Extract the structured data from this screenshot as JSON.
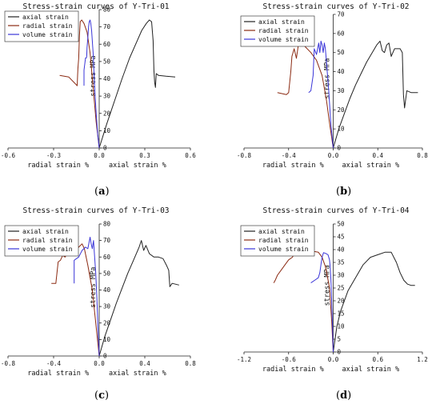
{
  "chart_data": [
    {
      "id": "a",
      "type": "line",
      "title": "Stress-strain curves of Y-Tri-01",
      "caption": "a",
      "xlabel_left": "radial strain %",
      "xlabel_right": "axial strain %",
      "ylabel": "stress MPa",
      "xlim": [
        -0.6,
        0.6
      ],
      "xticks": [
        -0.6,
        -0.3,
        0.0,
        0.3,
        0.6
      ],
      "xtick_labels": [
        "-0.6",
        "-0.3",
        "0.0",
        "0.3",
        "0.6"
      ],
      "ylim": [
        0,
        80
      ],
      "yticks": [
        0,
        10,
        20,
        30,
        40,
        50,
        60,
        70,
        80
      ],
      "legend": [
        "axial strain",
        "radial strain",
        "volume strain"
      ],
      "legend_position": "top-left",
      "series": [
        {
          "name": "axial strain",
          "color": "#222222",
          "x": [
            0,
            0.05,
            0.1,
            0.15,
            0.2,
            0.25,
            0.28,
            0.31,
            0.33,
            0.345,
            0.355,
            0.36,
            0.365,
            0.37,
            0.375,
            0.39,
            0.44,
            0.5
          ],
          "y": [
            0,
            14,
            27,
            40,
            52,
            62,
            68,
            72,
            74,
            73,
            62,
            45,
            38,
            35,
            43,
            42,
            41.5,
            41
          ]
        },
        {
          "name": "radial strain",
          "color": "#8b2a12",
          "x": [
            0,
            -0.02,
            -0.04,
            -0.06,
            -0.08,
            -0.1,
            -0.115,
            -0.125,
            -0.13,
            -0.135,
            -0.14,
            -0.142,
            -0.145,
            -0.2,
            -0.26
          ],
          "y": [
            0,
            15,
            35,
            55,
            67,
            72,
            74,
            73,
            65,
            52,
            46,
            42,
            36,
            41,
            42
          ]
        },
        {
          "name": "volume strain",
          "color": "#3a35d8",
          "x": [
            0,
            -0.01,
            -0.02,
            -0.03,
            -0.04,
            -0.05,
            -0.055,
            -0.06,
            -0.065,
            -0.07,
            -0.075,
            -0.08,
            -0.082,
            -0.085,
            -0.09,
            -0.1,
            -0.1
          ],
          "y": [
            0,
            8,
            20,
            35,
            55,
            68,
            72,
            74,
            73,
            70,
            64,
            58,
            53,
            52,
            52,
            45,
            36
          ]
        }
      ]
    },
    {
      "id": "b",
      "type": "line",
      "title": "Stress-strain curves of Y-Tri-02",
      "caption": "b",
      "xlabel_left": "radial strain %",
      "xlabel_right": "axial strain %",
      "ylabel": "stress MPa",
      "xlim": [
        -0.8,
        0.8
      ],
      "xticks": [
        -0.8,
        -0.4,
        0.0,
        0.4,
        0.8
      ],
      "xtick_labels": [
        "-0.8",
        "-0.4",
        "0.0",
        "0.4",
        "0.8"
      ],
      "ylim": [
        0,
        70
      ],
      "yticks": [
        0,
        10,
        20,
        30,
        40,
        50,
        60,
        70
      ],
      "legend": [
        "axial strain",
        "radial strain",
        "volume strain"
      ],
      "legend_position": "top-left",
      "series": [
        {
          "name": "axial strain",
          "color": "#222222",
          "x": [
            0,
            0.05,
            0.1,
            0.15,
            0.2,
            0.25,
            0.3,
            0.35,
            0.39,
            0.42,
            0.44,
            0.46,
            0.48,
            0.5,
            0.52,
            0.55,
            0.6,
            0.62,
            0.63,
            0.64,
            0.66,
            0.7,
            0.76
          ],
          "y": [
            0,
            10,
            18,
            26,
            33,
            39,
            45,
            50,
            54,
            56,
            51,
            50,
            54,
            55,
            48,
            52,
            52,
            50,
            28,
            21,
            30,
            29,
            29
          ]
        },
        {
          "name": "radial strain",
          "color": "#8b2a12",
          "x": [
            0,
            -0.03,
            -0.06,
            -0.1,
            -0.15,
            -0.2,
            -0.25,
            -0.28,
            -0.31,
            -0.33,
            -0.35,
            -0.37,
            -0.38,
            -0.4,
            -0.42,
            -0.5
          ],
          "y": [
            0,
            12,
            25,
            38,
            46,
            50,
            53,
            55,
            55,
            47,
            52,
            48,
            40,
            29,
            28,
            29
          ]
        },
        {
          "name": "volume strain",
          "color": "#3a35d8",
          "x": [
            0,
            -0.02,
            -0.04,
            -0.06,
            -0.07,
            -0.08,
            -0.09,
            -0.1,
            -0.11,
            -0.12,
            -0.13,
            -0.15,
            -0.17,
            -0.18,
            -0.2,
            -0.22
          ],
          "y": [
            0,
            12,
            30,
            45,
            52,
            55,
            50,
            54,
            56,
            50,
            55,
            49,
            52,
            38,
            30,
            29
          ]
        }
      ]
    },
    {
      "id": "c",
      "type": "line",
      "title": "Stress-strain curves of Y-Tri-03",
      "caption": "c",
      "xlabel_left": "radial strain %",
      "xlabel_right": "axial strain %",
      "ylabel": "stress MPa",
      "xlim": [
        -0.8,
        0.8
      ],
      "xticks": [
        -0.8,
        -0.4,
        0.0,
        0.4,
        0.8
      ],
      "xtick_labels": [
        "-0.8",
        "-0.4",
        "0.0",
        "0.4",
        "0.8"
      ],
      "ylim": [
        0,
        80
      ],
      "yticks": [
        0,
        10,
        20,
        30,
        40,
        50,
        60,
        70,
        80
      ],
      "legend": [
        "axial strain",
        "radial strain",
        "volume strain"
      ],
      "legend_position": "top-left",
      "series": [
        {
          "name": "axial strain",
          "color": "#222222",
          "x": [
            0,
            0.05,
            0.1,
            0.15,
            0.2,
            0.25,
            0.3,
            0.35,
            0.37,
            0.39,
            0.41,
            0.44,
            0.48,
            0.52,
            0.56,
            0.59,
            0.61,
            0.62,
            0.64,
            0.7
          ],
          "y": [
            0,
            12,
            22,
            32,
            41,
            50,
            58,
            66,
            70,
            64,
            67,
            62,
            60,
            60,
            59,
            55,
            52,
            42,
            44,
            43
          ]
        },
        {
          "name": "radial strain",
          "color": "#8b2a12",
          "x": [
            0,
            -0.03,
            -0.06,
            -0.1,
            -0.13,
            -0.15,
            -0.18,
            -0.22,
            -0.25,
            -0.28,
            -0.3,
            -0.32,
            -0.34,
            -0.36,
            -0.38,
            -0.42
          ],
          "y": [
            0,
            20,
            40,
            55,
            65,
            68,
            66,
            62,
            63,
            62,
            60,
            61,
            58,
            57,
            44,
            44
          ]
        },
        {
          "name": "volume strain",
          "color": "#3a35d8",
          "x": [
            0,
            -0.01,
            -0.02,
            -0.03,
            -0.04,
            -0.05,
            -0.06,
            -0.07,
            -0.08,
            -0.1,
            -0.12,
            -0.15,
            -0.18,
            -0.2,
            -0.22,
            -0.22
          ],
          "y": [
            0,
            15,
            35,
            50,
            60,
            70,
            65,
            68,
            72,
            65,
            66,
            64,
            60,
            59,
            58,
            44
          ]
        }
      ]
    },
    {
      "id": "d",
      "type": "line",
      "title": "Stress-strain curves of Y-Tri-04",
      "caption": "d",
      "xlabel_left": "radial strain %",
      "xlabel_right": "axial strain %",
      "ylabel": "stress MPa",
      "xlim": [
        -1.2,
        1.2
      ],
      "xticks": [
        -1.2,
        -0.6,
        0.0,
        0.6,
        1.2
      ],
      "xtick_labels": [
        "-1.2",
        "-0.6",
        "0.0",
        "0.6",
        "1.2"
      ],
      "ylim": [
        0,
        50
      ],
      "yticks": [
        0,
        5,
        10,
        15,
        20,
        25,
        30,
        35,
        40,
        45,
        50
      ],
      "legend": [
        "axial strain",
        "radial strain",
        "volume strain"
      ],
      "legend_position": "top-left",
      "series": [
        {
          "name": "axial strain",
          "color": "#222222",
          "x": [
            0,
            0.05,
            0.1,
            0.2,
            0.3,
            0.4,
            0.5,
            0.6,
            0.7,
            0.78,
            0.85,
            0.9,
            0.95,
            1.0,
            1.05,
            1.1
          ],
          "y": [
            0,
            10,
            16,
            24,
            29,
            34,
            37,
            38,
            39,
            39,
            35,
            31,
            28,
            26.5,
            26,
            26
          ]
        },
        {
          "name": "radial strain",
          "color": "#8b2a12",
          "x": [
            0,
            -0.02,
            -0.05,
            -0.1,
            -0.15,
            -0.2,
            -0.3,
            -0.4,
            -0.5,
            -0.55,
            -0.6,
            -0.65,
            -0.7,
            -0.75,
            -0.78,
            -0.8
          ],
          "y": [
            0,
            12,
            25,
            33,
            37,
            39,
            39.5,
            38,
            39.5,
            37,
            36,
            34,
            32,
            30,
            28,
            27
          ]
        },
        {
          "name": "volume strain",
          "color": "#3a35d8",
          "x": [
            0,
            -0.01,
            -0.02,
            -0.03,
            -0.04,
            -0.05,
            -0.07,
            -0.1,
            -0.13,
            -0.15,
            -0.16,
            -0.17,
            -0.18,
            -0.2,
            -0.25,
            -0.3
          ],
          "y": [
            0,
            10,
            20,
            28,
            33,
            36,
            38,
            38.5,
            38.8,
            37,
            35,
            33,
            31,
            29,
            28,
            27
          ]
        }
      ]
    }
  ]
}
